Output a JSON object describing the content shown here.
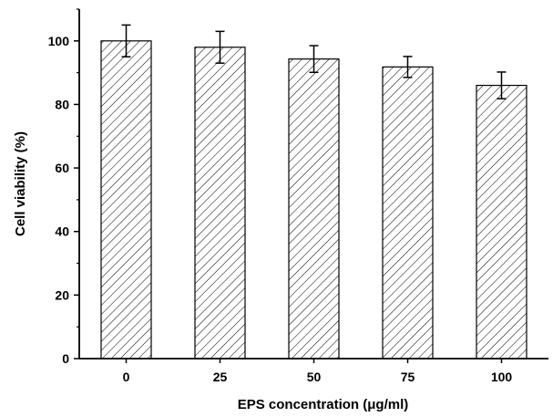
{
  "chart_data": {
    "type": "bar",
    "xlabel": "EPS concentration (μg/ml)",
    "ylabel": "Cell viability (%)",
    "categories": [
      "0",
      "25",
      "50",
      "75",
      "100"
    ],
    "values": [
      100,
      98,
      94.3,
      91.8,
      86
    ],
    "errors": [
      5,
      5,
      4.2,
      3.3,
      4.2
    ],
    "ylim": [
      0,
      110
    ],
    "yticks": [
      0,
      20,
      40,
      60,
      80,
      100
    ],
    "bar_fill": "hatched",
    "bar_color": "#000000",
    "grid": false,
    "legend": "none"
  }
}
